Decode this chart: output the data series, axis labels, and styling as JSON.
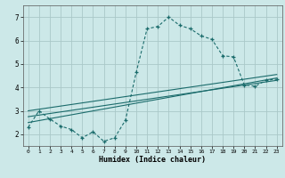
{
  "title": "",
  "xlabel": "Humidex (Indice chaleur)",
  "bg_color": "#cce8e8",
  "grid_color": "#aac8c8",
  "line_color": "#1a6b6b",
  "xlim": [
    -0.5,
    23.5
  ],
  "ylim": [
    1.5,
    7.5
  ],
  "xticks": [
    0,
    1,
    2,
    3,
    4,
    5,
    6,
    7,
    8,
    9,
    10,
    11,
    12,
    13,
    14,
    15,
    16,
    17,
    18,
    19,
    20,
    21,
    22,
    23
  ],
  "yticks": [
    2,
    3,
    4,
    5,
    6,
    7
  ],
  "line1_x": [
    0,
    1,
    2,
    3,
    4,
    5,
    6,
    7,
    8,
    9,
    10,
    11,
    12,
    13,
    14,
    15,
    16,
    17,
    18,
    19,
    20,
    21,
    22,
    23
  ],
  "line1_y": [
    2.3,
    3.0,
    2.65,
    2.35,
    2.2,
    1.85,
    2.1,
    1.7,
    1.85,
    2.6,
    4.65,
    6.5,
    6.6,
    7.0,
    6.65,
    6.5,
    6.2,
    6.05,
    5.35,
    5.3,
    4.1,
    4.05,
    4.3,
    4.35
  ],
  "line2_x": [
    0,
    23
  ],
  "line2_y": [
    2.5,
    4.4
  ],
  "line3_x": [
    0,
    23
  ],
  "line3_y": [
    2.75,
    4.3
  ],
  "line4_x": [
    0,
    23
  ],
  "line4_y": [
    3.0,
    4.55
  ]
}
